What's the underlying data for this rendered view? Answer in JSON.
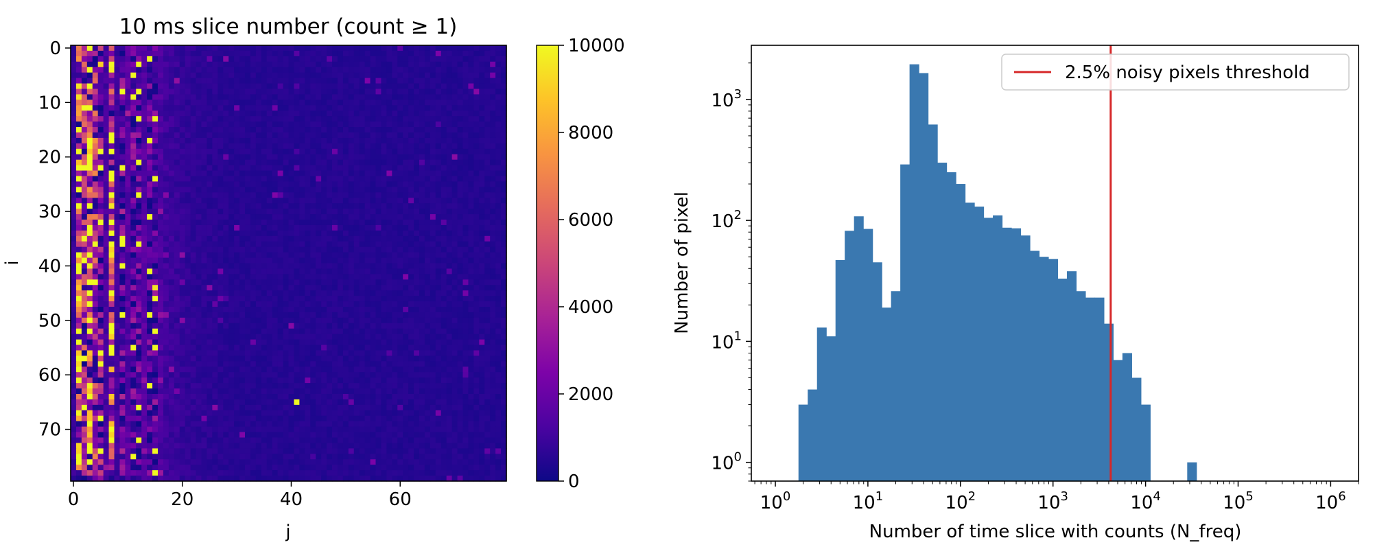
{
  "chart_data": [
    {
      "type": "heatmap",
      "title": "10 ms slice number (count ≥ 1)",
      "xlabel": "j",
      "ylabel": "i",
      "rows": 80,
      "cols": 80,
      "xticks": [
        "0",
        "20",
        "40",
        "60"
      ],
      "yticks": [
        "0",
        "10",
        "20",
        "30",
        "40",
        "50",
        "60",
        "70"
      ],
      "colormap": "plasma",
      "vmin": 0,
      "vmax": 10000,
      "colorbar_ticks": [
        "0",
        "2000",
        "4000",
        "6000",
        "8000",
        "10000"
      ],
      "column_profile": [
        {
          "j": 0,
          "mean": 800
        },
        {
          "j": 1,
          "mean": 6000
        },
        {
          "j": 2,
          "mean": 3000
        },
        {
          "j": 3,
          "mean": 7500
        },
        {
          "j": 4,
          "mean": 3500
        },
        {
          "j": 5,
          "mean": 2500
        },
        {
          "j": 6,
          "mean": 1200
        },
        {
          "j": 7,
          "mean": 6000
        },
        {
          "j": 8,
          "mean": 1000
        },
        {
          "j": 9,
          "mean": 1800
        },
        {
          "j": 10,
          "mean": 1500
        },
        {
          "j": 11,
          "mean": 1700
        },
        {
          "j": 13,
          "mean": 1500
        },
        {
          "j": 15,
          "mean": 1600
        },
        {
          "j": 17,
          "mean": 1000
        },
        {
          "j": 20,
          "mean": 750
        },
        {
          "j": 25,
          "mean": 600
        },
        {
          "j": 30,
          "mean": 500
        },
        {
          "j": 79,
          "mean": 450
        }
      ],
      "hotspots": [
        {
          "i": 65,
          "j": 41,
          "value": 10000
        },
        {
          "i": 44,
          "j": 15,
          "value": 9500
        },
        {
          "i": 22,
          "j": 1,
          "value": 10000
        },
        {
          "i": 22,
          "j": 3,
          "value": 10000
        },
        {
          "i": 34,
          "j": 3,
          "value": 10000
        },
        {
          "i": 59,
          "j": 1,
          "value": 10000
        },
        {
          "i": 3,
          "j": 5,
          "value": 9000
        }
      ]
    },
    {
      "type": "bar",
      "subtype": "histogram",
      "xlabel": "Number of time slice with counts (N_freq)",
      "ylabel": "Number of pixel",
      "xscale": "log",
      "yscale": "log",
      "xlim": [
        0.55,
        2000000
      ],
      "ylim": [
        0.7,
        2800
      ],
      "xticks": [
        "10^0",
        "10^1",
        "10^2",
        "10^3",
        "10^4",
        "10^5",
        "10^6"
      ],
      "yticks": [
        "10^0",
        "10^1",
        "10^2",
        "10^3"
      ],
      "bins": {
        "log10_start": 0.25,
        "log10_width": 0.1,
        "values": [
          3,
          4,
          13,
          11,
          47,
          82,
          108,
          85,
          45,
          19,
          26,
          290,
          1950,
          1650,
          620,
          300,
          250,
          200,
          140,
          130,
          105,
          110,
          87,
          86,
          75,
          56,
          50,
          48,
          33,
          38,
          26,
          23,
          23,
          14,
          7,
          8,
          5,
          3,
          0,
          0,
          0,
          0,
          1
        ]
      },
      "threshold": {
        "x": 4200,
        "color": "#d62728"
      },
      "legend": {
        "label": "2.5% noisy pixels threshold",
        "position": "upper right"
      },
      "bar_color": "#3a78b0"
    }
  ]
}
